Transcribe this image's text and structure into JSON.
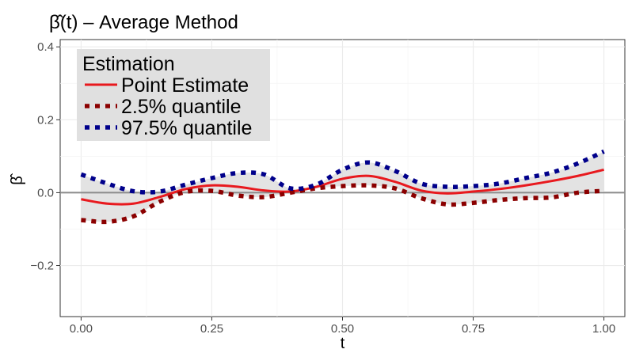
{
  "chart_data": {
    "type": "line",
    "title": "β̂(t) – Average Method",
    "xlabel": "t",
    "ylabel": "β̂",
    "xlim": [
      -0.04,
      1.04
    ],
    "ylim": [
      -0.34,
      0.42
    ],
    "x_ticks": [
      "0.00",
      "0.25",
      "0.50",
      "0.75",
      "1.00"
    ],
    "y_ticks": [
      "-0.2",
      "0.0",
      "0.2",
      "0.4"
    ],
    "y_tick_labels": [
      "−0.2",
      "0.0",
      "0.2",
      "0.4"
    ],
    "grid": true,
    "hline": 0,
    "legend": {
      "title": "Estimation",
      "position": "top-left",
      "entries": [
        "Point Estimate",
        "2.5% quantile",
        "97.5% quantile"
      ]
    },
    "x": [
      0.0,
      0.05,
      0.1,
      0.15,
      0.2,
      0.25,
      0.3,
      0.35,
      0.4,
      0.45,
      0.5,
      0.55,
      0.6,
      0.65,
      0.7,
      0.75,
      0.8,
      0.85,
      0.9,
      0.95,
      1.0
    ],
    "series": [
      {
        "name": "Point Estimate",
        "color": "#e8191e",
        "style": "solid",
        "values": [
          -0.018,
          -0.03,
          -0.03,
          -0.012,
          0.01,
          0.02,
          0.016,
          0.006,
          0.003,
          0.016,
          0.038,
          0.046,
          0.03,
          0.006,
          -0.002,
          0.003,
          0.01,
          0.02,
          0.032,
          0.046,
          0.063
        ]
      },
      {
        "name": "2.5% quantile",
        "color": "#8b0000",
        "style": "dotted",
        "values": [
          -0.075,
          -0.08,
          -0.065,
          -0.025,
          0.002,
          0.005,
          -0.008,
          -0.012,
          0.0,
          0.012,
          0.018,
          0.02,
          0.012,
          -0.015,
          -0.032,
          -0.028,
          -0.02,
          -0.015,
          -0.013,
          0.0,
          0.005
        ]
      },
      {
        "name": "97.5% quantile",
        "color": "#00008b",
        "style": "dotted",
        "values": [
          0.05,
          0.025,
          0.004,
          0.003,
          0.022,
          0.04,
          0.054,
          0.05,
          0.012,
          0.022,
          0.063,
          0.083,
          0.06,
          0.025,
          0.016,
          0.018,
          0.025,
          0.04,
          0.055,
          0.08,
          0.113
        ]
      }
    ],
    "band": {
      "lower": "2.5% quantile",
      "upper": "97.5% quantile",
      "color": "#d9d9d9"
    }
  }
}
